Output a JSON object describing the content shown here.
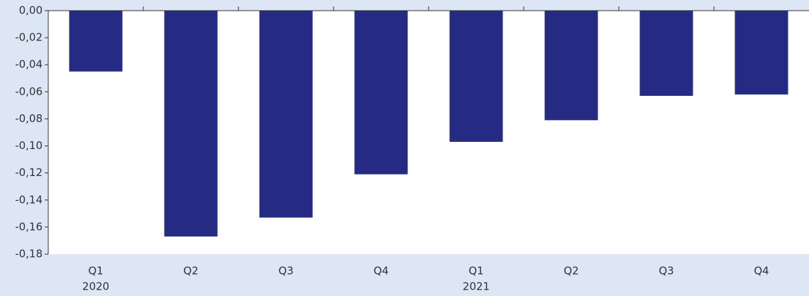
{
  "chart_data": {
    "type": "bar",
    "categories": [
      [
        "Q1",
        "2020"
      ],
      [
        "Q2"
      ],
      [
        "Q3"
      ],
      [
        "Q4"
      ],
      [
        "Q1",
        "2021"
      ],
      [
        "Q2"
      ],
      [
        "Q3"
      ],
      [
        "Q4"
      ]
    ],
    "values": [
      -0.045,
      -0.167,
      -0.153,
      -0.121,
      -0.097,
      -0.081,
      -0.063,
      -0.062
    ],
    "color": "#252b82",
    "ylim": [
      -0.18,
      0
    ],
    "yticks": [
      {
        "value": 0,
        "label": "0,00"
      },
      {
        "value": -0.02,
        "label": "-0,02"
      },
      {
        "value": -0.04,
        "label": "-0,04"
      },
      {
        "value": -0.06,
        "label": "-0,06"
      },
      {
        "value": -0.08,
        "label": "-0,08"
      },
      {
        "value": -0.1,
        "label": "-0,10"
      },
      {
        "value": -0.12,
        "label": "-0,12"
      },
      {
        "value": -0.14,
        "label": "-0,14"
      },
      {
        "value": -0.16,
        "label": "-0,16"
      },
      {
        "value": -0.18,
        "label": "-0,18"
      }
    ],
    "grid": false
  }
}
